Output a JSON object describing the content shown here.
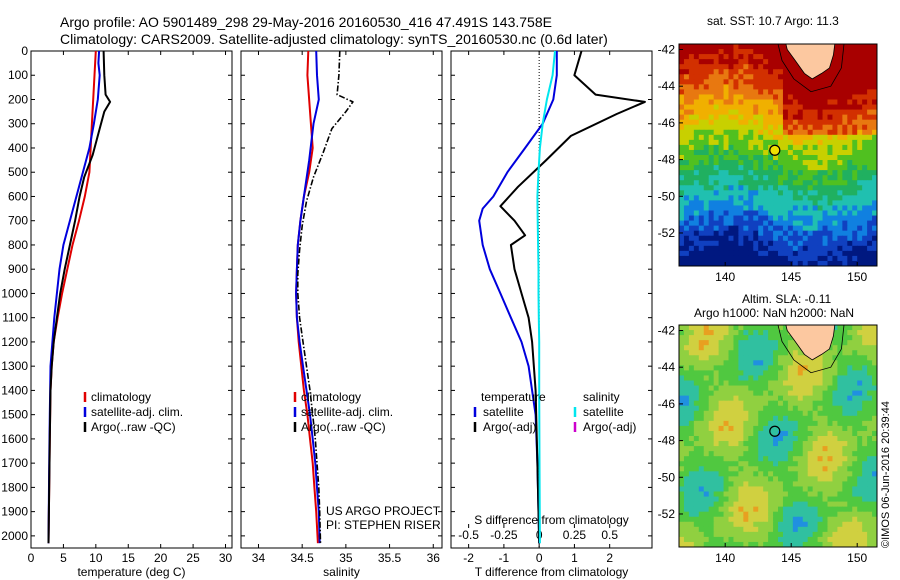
{
  "titles": {
    "line1": "Argo profile: AO 5901489_298 29-May-2016 20160530_416 47.491S 143.758E",
    "line2": "Climatology: CARS2009. Satellite-adjusted climatology: synTS_20160530.nc (0.6d later)"
  },
  "credit": {
    "project": "US ARGO PROJECT",
    "pi": "PI: STEPHEN RISER",
    "stamp": "©IMOS 06-Jun-2016 20:39:44"
  },
  "colors": {
    "climatology": "#e00000",
    "satellite": "#0000dd",
    "argo": "#000000",
    "salinity_satellite": "#00e6ee",
    "salinity_argo": "#cc00cc"
  },
  "chart_data": [
    {
      "type": "line",
      "panel": "temperature",
      "xlabel": "temperature (deg C)",
      "xlim": [
        0,
        31
      ],
      "xticks": [
        "0",
        "5",
        "10",
        "15",
        "20",
        "25",
        "30"
      ],
      "ylim": [
        2050,
        0
      ],
      "yticks": [
        "0",
        "100",
        "200",
        "300",
        "400",
        "500",
        "600",
        "700",
        "800",
        "900",
        "1000",
        "1100",
        "1200",
        "1300",
        "1400",
        "1500",
        "1600",
        "1700",
        "1800",
        "1900",
        "2000"
      ],
      "legend": [
        "climatology",
        "satellite-adj. clim.",
        "Argo(..raw -QC)"
      ],
      "series": [
        {
          "name": "climatology",
          "style": "solid",
          "color": "climatology",
          "points": [
            [
              10.0,
              0
            ],
            [
              9.8,
              100
            ],
            [
              9.4,
              300
            ],
            [
              9.0,
              500
            ],
            [
              8.3,
              600
            ],
            [
              7.4,
              700
            ],
            [
              6.4,
              800
            ],
            [
              5.6,
              900
            ],
            [
              4.8,
              1000
            ],
            [
              4.1,
              1100
            ],
            [
              3.5,
              1200
            ],
            [
              3.2,
              1300
            ],
            [
              3.0,
              1400
            ],
            [
              2.9,
              1600
            ],
            [
              2.8,
              1800
            ],
            [
              2.7,
              2030
            ]
          ]
        },
        {
          "name": "satellite-adj. clim.",
          "style": "solid",
          "color": "satellite",
          "points": [
            [
              10.5,
              0
            ],
            [
              10.4,
              50
            ],
            [
              10.6,
              100
            ],
            [
              10.3,
              200
            ],
            [
              9.7,
              300
            ],
            [
              9.0,
              400
            ],
            [
              8.0,
              500
            ],
            [
              7.0,
              600
            ],
            [
              6.0,
              700
            ],
            [
              5.0,
              800
            ],
            [
              4.4,
              900
            ],
            [
              4.0,
              1000
            ],
            [
              3.6,
              1100
            ],
            [
              3.3,
              1200
            ],
            [
              3.0,
              1300
            ],
            [
              2.9,
              1500
            ],
            [
              2.8,
              1700
            ],
            [
              2.7,
              2030
            ]
          ]
        },
        {
          "name": "Argo(..raw -QC)",
          "style": "solid",
          "color": "argo",
          "points": [
            [
              11.2,
              0
            ],
            [
              11.3,
              100
            ],
            [
              11.5,
              180
            ],
            [
              12.2,
              210
            ],
            [
              11.3,
              250
            ],
            [
              10.6,
              320
            ],
            [
              9.5,
              430
            ],
            [
              8.2,
              520
            ],
            [
              7.5,
              600
            ],
            [
              6.8,
              700
            ],
            [
              6.0,
              800
            ],
            [
              5.2,
              900
            ],
            [
              4.5,
              1000
            ],
            [
              4.0,
              1100
            ],
            [
              3.5,
              1200
            ],
            [
              3.2,
              1300
            ],
            [
              3.0,
              1400
            ],
            [
              2.9,
              1600
            ],
            [
              2.8,
              1800
            ],
            [
              2.7,
              2030
            ]
          ]
        }
      ]
    },
    {
      "type": "line",
      "panel": "salinity",
      "xlabel": "salinity",
      "xlim": [
        33.8,
        36.1
      ],
      "xticks": [
        "34",
        "34.5",
        "35",
        "35.5",
        "36"
      ],
      "ylim": [
        2050,
        0
      ],
      "legend": [
        "climatology",
        "satellite-adj. clim.",
        "Argo(..raw -QC)"
      ],
      "series": [
        {
          "name": "climatology",
          "style": "solid",
          "color": "climatology",
          "points": [
            [
              34.57,
              0
            ],
            [
              34.56,
              100
            ],
            [
              34.6,
              300
            ],
            [
              34.62,
              400
            ],
            [
              34.58,
              500
            ],
            [
              34.52,
              600
            ],
            [
              34.48,
              700
            ],
            [
              34.45,
              800
            ],
            [
              34.44,
              900
            ],
            [
              34.43,
              1000
            ],
            [
              34.44,
              1100
            ],
            [
              34.46,
              1200
            ],
            [
              34.49,
              1300
            ],
            [
              34.52,
              1400
            ],
            [
              34.56,
              1500
            ],
            [
              34.59,
              1600
            ],
            [
              34.62,
              1700
            ],
            [
              34.64,
              1800
            ],
            [
              34.66,
              1900
            ],
            [
              34.68,
              2030
            ]
          ]
        },
        {
          "name": "satellite-adj. clim.",
          "style": "solid",
          "color": "satellite",
          "points": [
            [
              34.66,
              0
            ],
            [
              34.67,
              100
            ],
            [
              34.69,
              200
            ],
            [
              34.63,
              300
            ],
            [
              34.58,
              450
            ],
            [
              34.52,
              600
            ],
            [
              34.48,
              700
            ],
            [
              34.45,
              800
            ],
            [
              34.44,
              900
            ],
            [
              34.43,
              1000
            ],
            [
              34.44,
              1100
            ],
            [
              34.47,
              1200
            ],
            [
              34.51,
              1300
            ],
            [
              34.55,
              1400
            ],
            [
              34.59,
              1500
            ],
            [
              34.62,
              1600
            ],
            [
              34.65,
              1700
            ],
            [
              34.67,
              1800
            ],
            [
              34.69,
              1900
            ],
            [
              34.7,
              2030
            ]
          ]
        },
        {
          "name": "Argo(..raw -QC)",
          "style": "dashdot",
          "color": "argo",
          "points": [
            [
              34.93,
              0
            ],
            [
              34.92,
              100
            ],
            [
              34.9,
              180
            ],
            [
              35.08,
              210
            ],
            [
              35.0,
              250
            ],
            [
              34.84,
              320
            ],
            [
              34.74,
              420
            ],
            [
              34.63,
              520
            ],
            [
              34.55,
              620
            ],
            [
              34.5,
              720
            ],
            [
              34.47,
              820
            ],
            [
              34.45,
              920
            ],
            [
              34.45,
              1000
            ],
            [
              34.47,
              1100
            ],
            [
              34.51,
              1200
            ],
            [
              34.55,
              1300
            ],
            [
              34.59,
              1400
            ],
            [
              34.62,
              1500
            ],
            [
              34.65,
              1600
            ],
            [
              34.67,
              1700
            ],
            [
              34.69,
              1800
            ],
            [
              34.7,
              1900
            ],
            [
              34.71,
              2030
            ]
          ]
        }
      ]
    },
    {
      "type": "line",
      "panel": "difference",
      "xlabel": "T difference from climatology",
      "xlim": [
        -2.5,
        3.2
      ],
      "xticks": [
        "-2",
        "-1",
        "0",
        "1",
        "2"
      ],
      "top_axis_label": "S difference from climatology",
      "top_ticks": [
        "-0.5",
        "-0.25",
        "0",
        "0.25",
        "0.5"
      ],
      "ylim": [
        2050,
        0
      ],
      "legend_left": {
        "title": "temperature",
        "items": [
          "satellite",
          "Argo(-adj)"
        ]
      },
      "legend_right": {
        "title": "salinity",
        "items": [
          "satellite",
          "Argo(-adj)"
        ]
      },
      "series": [
        {
          "name": "temperature satellite",
          "style": "solid",
          "color": "satellite",
          "points": [
            [
              0.5,
              0
            ],
            [
              0.5,
              100
            ],
            [
              0.4,
              200
            ],
            [
              0.1,
              300
            ],
            [
              -0.4,
              400
            ],
            [
              -0.9,
              500
            ],
            [
              -1.3,
              600
            ],
            [
              -1.6,
              650
            ],
            [
              -1.7,
              700
            ],
            [
              -1.6,
              800
            ],
            [
              -1.4,
              900
            ],
            [
              -1.1,
              1000
            ],
            [
              -0.8,
              1100
            ],
            [
              -0.5,
              1200
            ],
            [
              -0.3,
              1300
            ],
            [
              -0.1,
              1500
            ],
            [
              -0.05,
              1700
            ],
            [
              0,
              2030
            ]
          ]
        },
        {
          "name": "temperature Argo(-adj)",
          "style": "solid",
          "color": "argo",
          "points": [
            [
              1.2,
              0
            ],
            [
              1.0,
              100
            ],
            [
              1.6,
              180
            ],
            [
              3.0,
              210
            ],
            [
              2.2,
              260
            ],
            [
              0.9,
              350
            ],
            [
              0.2,
              450
            ],
            [
              -0.6,
              560
            ],
            [
              -1.1,
              640
            ],
            [
              -0.7,
              700
            ],
            [
              -0.4,
              760
            ],
            [
              -0.8,
              800
            ],
            [
              -0.7,
              900
            ],
            [
              -0.5,
              1000
            ],
            [
              -0.3,
              1100
            ],
            [
              -0.2,
              1200
            ],
            [
              -0.1,
              1400
            ],
            [
              -0.05,
              1700
            ],
            [
              0,
              2030
            ]
          ]
        },
        {
          "name": "salinity satellite",
          "style": "solid",
          "color": "salinity_satellite",
          "points": [
            [
              0.45,
              0
            ],
            [
              0.38,
              100
            ],
            [
              0.22,
              200
            ],
            [
              0.1,
              300
            ],
            [
              0.02,
              400
            ],
            [
              -0.02,
              500
            ],
            [
              -0.05,
              600
            ],
            [
              -0.04,
              700
            ],
            [
              -0.03,
              800
            ],
            [
              -0.02,
              900
            ],
            [
              -0.02,
              1000
            ],
            [
              -0.01,
              1100
            ],
            [
              0,
              1200
            ],
            [
              0,
              1400
            ],
            [
              0.01,
              1700
            ],
            [
              0.02,
              2030
            ]
          ]
        }
      ]
    },
    {
      "type": "heatmap",
      "panel": "sst_map",
      "title": "sat. SST: 10.7 Argo: 11.3",
      "xlim": [
        136.5,
        151.5
      ],
      "ylim": [
        -53.8,
        -41.7
      ],
      "xticks": [
        "140",
        "145",
        "150"
      ],
      "yticks": [
        "-42",
        "-44",
        "-46",
        "-48",
        "-50",
        "-52"
      ],
      "marker": {
        "lon": 143.758,
        "lat": -47.491
      }
    },
    {
      "type": "heatmap",
      "panel": "sla_map",
      "title_line1": "Altim. SLA: -0.11",
      "title_line2": "Argo h1000: NaN h2000: NaN",
      "xlim": [
        136.5,
        151.5
      ],
      "ylim": [
        -53.8,
        -41.7
      ],
      "xticks": [
        "140",
        "145",
        "150"
      ],
      "yticks": [
        "-42",
        "-44",
        "-46",
        "-48",
        "-50",
        "-52"
      ],
      "marker": {
        "lon": 143.758,
        "lat": -47.491
      }
    }
  ]
}
